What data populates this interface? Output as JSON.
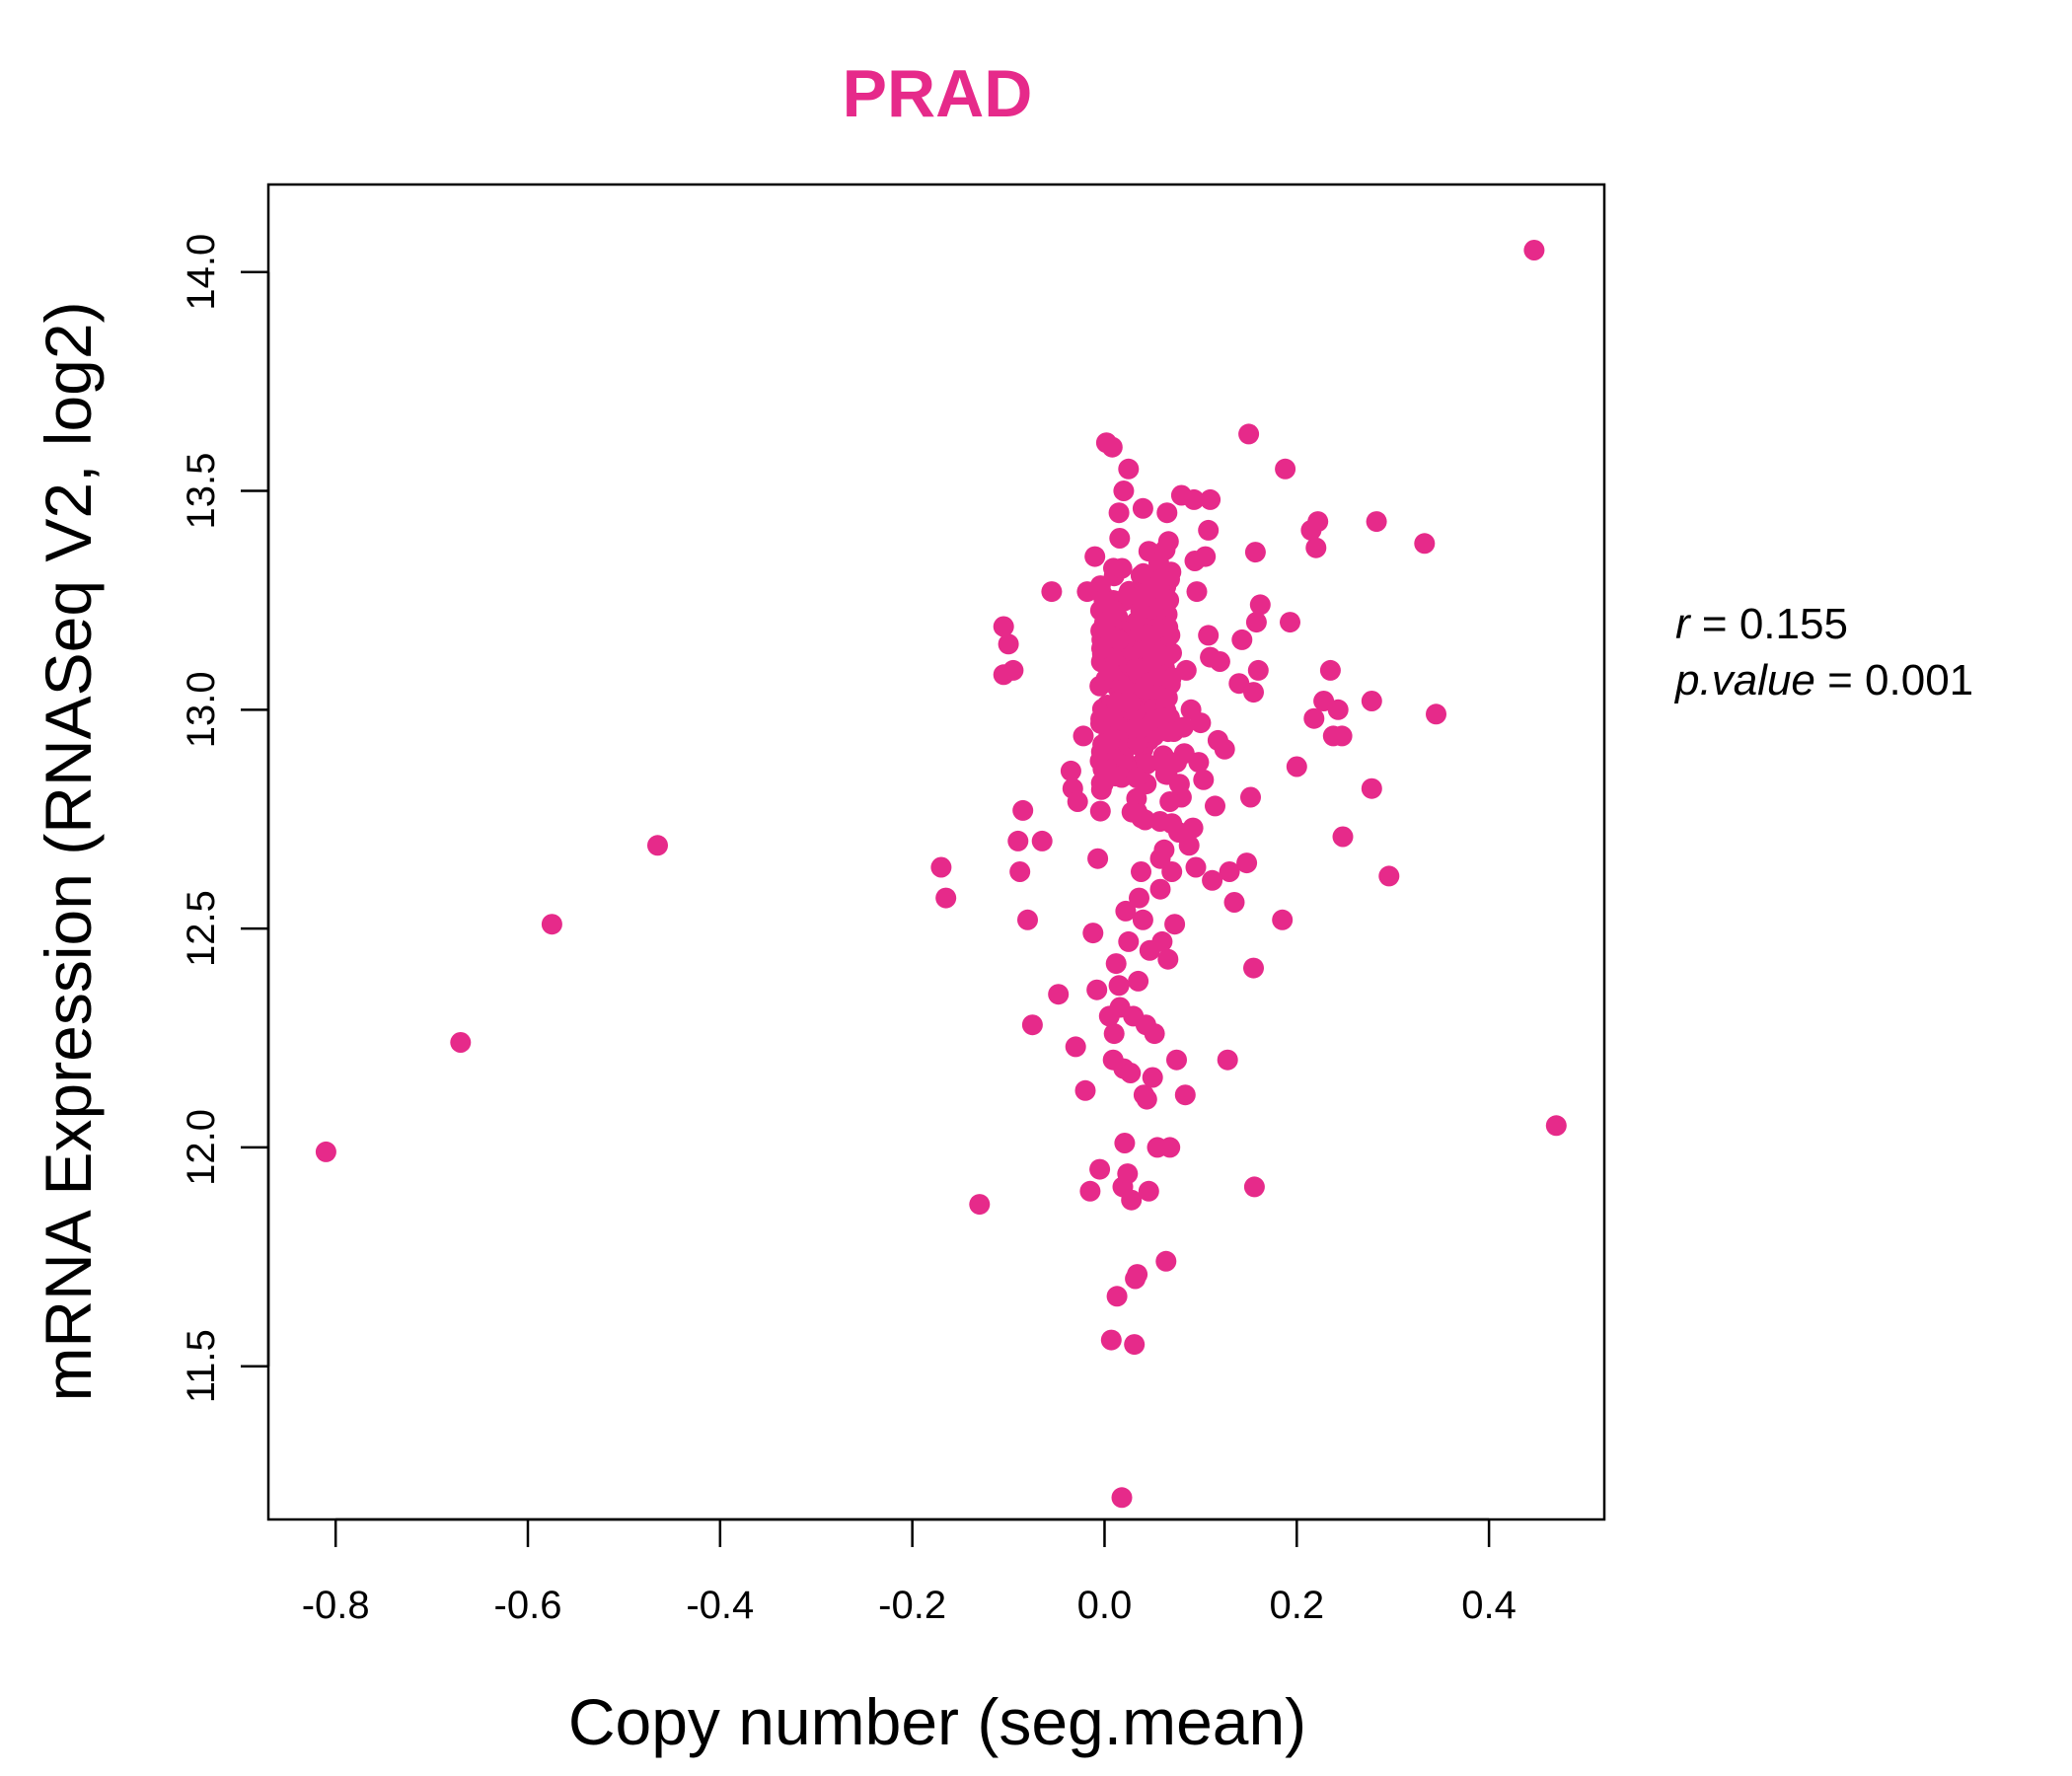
{
  "chart_data": {
    "type": "scatter",
    "title": "PRAD",
    "title_color": "#E62A8A",
    "point_color": "#E62A8A",
    "xlabel": "Copy number (seg.mean)",
    "ylabel": "mRNA Expression (RNASeq V2, log2)",
    "xlim": [
      -0.87,
      0.52
    ],
    "ylim": [
      11.15,
      14.2
    ],
    "x_ticks": [
      -0.8,
      -0.6,
      -0.4,
      -0.2,
      0.0,
      0.2,
      0.4
    ],
    "x_tick_labels": [
      "-0.8",
      "-0.6",
      "-0.4",
      "-0.2",
      "0.0",
      "0.2",
      "0.4"
    ],
    "y_ticks": [
      11.5,
      12.0,
      12.5,
      13.0,
      13.5,
      14.0
    ],
    "y_tick_labels": [
      "11.5",
      "12.0",
      "12.5",
      "13.0",
      "13.5",
      "14.0"
    ],
    "grid": false,
    "stats": {
      "r_label": "r",
      "r_value": "0.155",
      "p_label": "p.value",
      "p_value": "0.001"
    },
    "points": [
      {
        "x": -0.81,
        "y": 11.99
      },
      {
        "x": -0.67,
        "y": 12.24
      },
      {
        "x": -0.575,
        "y": 12.51
      },
      {
        "x": -0.465,
        "y": 12.69
      },
      {
        "x": -0.17,
        "y": 12.64
      },
      {
        "x": -0.165,
        "y": 12.57
      },
      {
        "x": -0.13,
        "y": 11.87
      },
      {
        "x": -0.105,
        "y": 13.19
      },
      {
        "x": -0.1,
        "y": 13.15
      },
      {
        "x": -0.105,
        "y": 13.08
      },
      {
        "x": -0.095,
        "y": 13.09
      },
      {
        "x": -0.09,
        "y": 12.7
      },
      {
        "x": -0.085,
        "y": 12.77
      },
      {
        "x": -0.088,
        "y": 12.63
      },
      {
        "x": -0.08,
        "y": 12.52
      },
      {
        "x": -0.075,
        "y": 12.28
      },
      {
        "x": -0.065,
        "y": 12.7
      },
      {
        "x": -0.055,
        "y": 13.27
      },
      {
        "x": -0.048,
        "y": 12.35
      },
      {
        "x": -0.035,
        "y": 12.86
      },
      {
        "x": -0.033,
        "y": 12.82
      },
      {
        "x": -0.03,
        "y": 12.23
      },
      {
        "x": -0.028,
        "y": 12.79
      },
      {
        "x": -0.022,
        "y": 12.94
      },
      {
        "x": -0.02,
        "y": 12.13
      },
      {
        "x": -0.018,
        "y": 13.27
      },
      {
        "x": -0.015,
        "y": 11.9
      },
      {
        "x": -0.012,
        "y": 12.49
      },
      {
        "x": -0.01,
        "y": 13.35
      },
      {
        "x": -0.008,
        "y": 12.36
      },
      {
        "x": -0.007,
        "y": 12.66
      },
      {
        "x": -0.005,
        "y": 11.95
      },
      {
        "x": -0.003,
        "y": 13.14
      },
      {
        "x": 0.0,
        "y": 13.2
      },
      {
        "x": 0.002,
        "y": 13.61
      },
      {
        "x": 0.005,
        "y": 12.3
      },
      {
        "x": 0.007,
        "y": 11.56
      },
      {
        "x": 0.008,
        "y": 13.6
      },
      {
        "x": 0.009,
        "y": 12.2
      },
      {
        "x": 0.01,
        "y": 12.26
      },
      {
        "x": 0.012,
        "y": 12.42
      },
      {
        "x": 0.013,
        "y": 11.66
      },
      {
        "x": 0.015,
        "y": 12.37
      },
      {
        "x": 0.016,
        "y": 12.32
      },
      {
        "x": 0.018,
        "y": 11.2
      },
      {
        "x": 0.019,
        "y": 11.91
      },
      {
        "x": 0.02,
        "y": 12.18
      },
      {
        "x": 0.021,
        "y": 12.01
      },
      {
        "x": 0.022,
        "y": 12.54
      },
      {
        "x": 0.024,
        "y": 11.94
      },
      {
        "x": 0.025,
        "y": 12.47
      },
      {
        "x": 0.027,
        "y": 12.17
      },
      {
        "x": 0.028,
        "y": 11.88
      },
      {
        "x": 0.03,
        "y": 12.3
      },
      {
        "x": 0.031,
        "y": 11.55
      },
      {
        "x": 0.032,
        "y": 11.7
      },
      {
        "x": 0.034,
        "y": 11.71
      },
      {
        "x": 0.035,
        "y": 12.38
      },
      {
        "x": 0.036,
        "y": 12.57
      },
      {
        "x": 0.038,
        "y": 12.63
      },
      {
        "x": 0.04,
        "y": 12.52
      },
      {
        "x": 0.041,
        "y": 12.12
      },
      {
        "x": 0.043,
        "y": 12.28
      },
      {
        "x": 0.044,
        "y": 12.11
      },
      {
        "x": 0.046,
        "y": 11.9
      },
      {
        "x": 0.047,
        "y": 12.45
      },
      {
        "x": 0.05,
        "y": 12.16
      },
      {
        "x": 0.052,
        "y": 12.26
      },
      {
        "x": 0.055,
        "y": 12.0
      },
      {
        "x": 0.058,
        "y": 12.59
      },
      {
        "x": 0.06,
        "y": 12.47
      },
      {
        "x": 0.064,
        "y": 11.74
      },
      {
        "x": 0.066,
        "y": 12.43
      },
      {
        "x": 0.068,
        "y": 12.0
      },
      {
        "x": 0.07,
        "y": 12.63
      },
      {
        "x": 0.073,
        "y": 12.51
      },
      {
        "x": 0.075,
        "y": 12.2
      },
      {
        "x": 0.08,
        "y": 12.8
      },
      {
        "x": 0.084,
        "y": 12.12
      },
      {
        "x": 0.088,
        "y": 12.69
      },
      {
        "x": 0.092,
        "y": 12.73
      },
      {
        "x": 0.095,
        "y": 12.64
      },
      {
        "x": 0.098,
        "y": 12.88
      },
      {
        "x": 0.1,
        "y": 12.97
      },
      {
        "x": 0.103,
        "y": 12.84
      },
      {
        "x": 0.108,
        "y": 13.17
      },
      {
        "x": 0.11,
        "y": 13.12
      },
      {
        "x": 0.112,
        "y": 12.61
      },
      {
        "x": 0.115,
        "y": 12.78
      },
      {
        "x": 0.118,
        "y": 12.93
      },
      {
        "x": 0.12,
        "y": 13.11
      },
      {
        "x": 0.125,
        "y": 12.91
      },
      {
        "x": 0.128,
        "y": 12.2
      },
      {
        "x": 0.13,
        "y": 12.63
      },
      {
        "x": 0.135,
        "y": 12.56
      },
      {
        "x": 0.14,
        "y": 13.06
      },
      {
        "x": 0.143,
        "y": 13.16
      },
      {
        "x": 0.148,
        "y": 12.65
      },
      {
        "x": 0.15,
        "y": 13.63
      },
      {
        "x": 0.152,
        "y": 12.8
      },
      {
        "x": 0.155,
        "y": 12.41
      },
      {
        "x": 0.155,
        "y": 13.04
      },
      {
        "x": 0.156,
        "y": 11.91
      },
      {
        "x": 0.157,
        "y": 13.36
      },
      {
        "x": 0.158,
        "y": 13.2
      },
      {
        "x": 0.16,
        "y": 13.09
      },
      {
        "x": 0.162,
        "y": 13.24
      },
      {
        "x": 0.185,
        "y": 12.52
      },
      {
        "x": 0.188,
        "y": 13.55
      },
      {
        "x": 0.193,
        "y": 13.2
      },
      {
        "x": 0.2,
        "y": 12.87
      },
      {
        "x": 0.215,
        "y": 13.41
      },
      {
        "x": 0.218,
        "y": 12.98
      },
      {
        "x": 0.22,
        "y": 13.37
      },
      {
        "x": 0.222,
        "y": 13.43
      },
      {
        "x": 0.228,
        "y": 13.02
      },
      {
        "x": 0.235,
        "y": 13.09
      },
      {
        "x": 0.238,
        "y": 12.94
      },
      {
        "x": 0.243,
        "y": 13.0
      },
      {
        "x": 0.247,
        "y": 12.94
      },
      {
        "x": 0.248,
        "y": 12.71
      },
      {
        "x": 0.278,
        "y": 13.02
      },
      {
        "x": 0.278,
        "y": 12.82
      },
      {
        "x": 0.283,
        "y": 13.43
      },
      {
        "x": 0.296,
        "y": 12.62
      },
      {
        "x": 0.333,
        "y": 13.38
      },
      {
        "x": 0.345,
        "y": 12.99
      },
      {
        "x": 0.447,
        "y": 14.05
      },
      {
        "x": 0.47,
        "y": 12.05
      },
      {
        "x": 0.065,
        "y": 13.45
      },
      {
        "x": 0.08,
        "y": 13.49
      },
      {
        "x": 0.093,
        "y": 13.48
      },
      {
        "x": 0.11,
        "y": 13.48
      },
      {
        "x": 0.108,
        "y": 13.41
      },
      {
        "x": 0.094,
        "y": 13.34
      },
      {
        "x": 0.105,
        "y": 13.35
      },
      {
        "x": 0.096,
        "y": 13.27
      },
      {
        "x": 0.085,
        "y": 13.09
      },
      {
        "x": 0.09,
        "y": 13.0
      },
      {
        "x": 0.072,
        "y": 12.95
      },
      {
        "x": 0.082,
        "y": 12.96
      },
      {
        "x": 0.075,
        "y": 12.88
      },
      {
        "x": 0.083,
        "y": 12.9
      },
      {
        "x": 0.068,
        "y": 12.79
      },
      {
        "x": 0.078,
        "y": 12.83
      },
      {
        "x": 0.077,
        "y": 12.72
      },
      {
        "x": 0.07,
        "y": 12.74
      },
      {
        "x": 0.062,
        "y": 12.68
      },
      {
        "x": 0.058,
        "y": 12.66
      },
      {
        "x": 0.025,
        "y": 13.55
      },
      {
        "x": 0.02,
        "y": 13.5
      },
      {
        "x": 0.04,
        "y": 13.46
      },
      {
        "x": 0.015,
        "y": 13.45
      }
    ]
  }
}
